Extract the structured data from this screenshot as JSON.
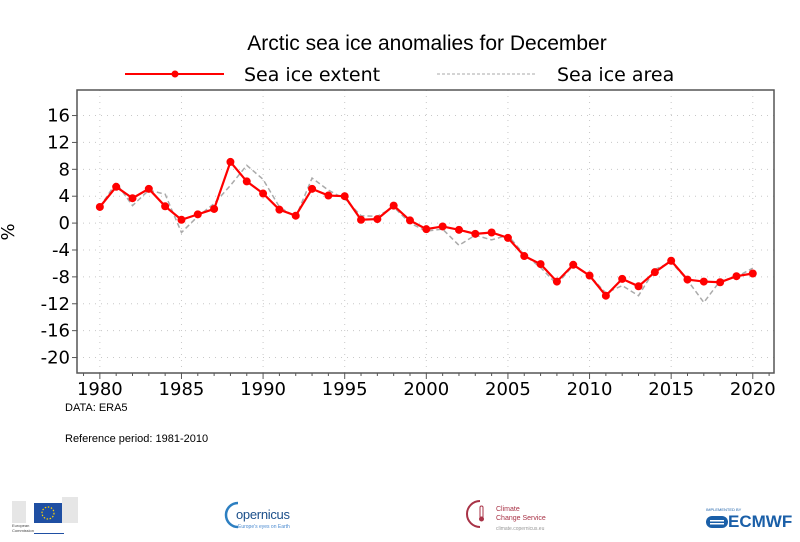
{
  "chart_data": {
    "type": "line",
    "title": "Arctic sea ice anomalies for December",
    "xlabel": "",
    "ylabel": "%",
    "xlim": [
      1978.6,
      2021.3
    ],
    "ylim": [
      -22.3,
      19.8
    ],
    "grid": true,
    "legend_position": "top",
    "x_ticks": [
      1980,
      1985,
      1990,
      1995,
      2000,
      2005,
      2010,
      2015,
      2020
    ],
    "x_tick_labels": [
      "1980",
      "1985",
      "1990",
      "1995",
      "2000",
      "2005",
      "2010",
      "2015",
      "2020"
    ],
    "y_ticks": [
      16,
      12,
      8,
      4,
      0,
      -4,
      -8,
      -12,
      -16,
      -20
    ],
    "y_tick_labels": [
      "16",
      "12",
      "8",
      "4",
      "0",
      "-4",
      "-8",
      "-12",
      "-16",
      "-20"
    ],
    "x": [
      1980,
      1981,
      1982,
      1983,
      1984,
      1985,
      1986,
      1987,
      1988,
      1989,
      1990,
      1991,
      1992,
      1993,
      1994,
      1995,
      1996,
      1997,
      1998,
      1999,
      2000,
      2001,
      2002,
      2003,
      2004,
      2005,
      2006,
      2007,
      2008,
      2009,
      2010,
      2011,
      2012,
      2013,
      2014,
      2015,
      2016,
      2017,
      2018,
      2019,
      2020
    ],
    "series": [
      {
        "name": "Sea ice extent",
        "color": "#ff0000",
        "style": "solid-with-markers",
        "values": [
          2.4,
          5.4,
          3.7,
          5.1,
          2.5,
          0.5,
          1.3,
          2.1,
          9.1,
          6.2,
          4.4,
          2.0,
          1.1,
          5.1,
          4.1,
          4.0,
          0.5,
          0.6,
          2.6,
          0.4,
          -0.9,
          -0.5,
          -1.0,
          -1.6,
          -1.4,
          -2.2,
          -4.9,
          -6.1,
          -8.7,
          -6.2,
          -7.8,
          -10.8,
          -8.3,
          -9.4,
          -7.3,
          -5.6,
          -8.4,
          -8.7,
          -8.8,
          -7.9,
          -7.5
        ]
      },
      {
        "name": "Sea ice area",
        "color": "#aaaaaa",
        "style": "dashed",
        "values": [
          2.4,
          6.0,
          2.6,
          4.9,
          4.3,
          -1.4,
          1.0,
          2.9,
          5.6,
          8.6,
          6.5,
          2.4,
          0.9,
          6.7,
          4.9,
          3.6,
          1.1,
          1.0,
          2.4,
          0.0,
          -1.2,
          -0.9,
          -3.3,
          -1.8,
          -2.5,
          -1.8,
          -4.7,
          -6.6,
          -9.1,
          -6.3,
          -7.8,
          -10.4,
          -9.3,
          -10.8,
          -6.9,
          -5.8,
          -8.5,
          -11.8,
          -8.6,
          -8.0,
          -6.7
        ]
      }
    ]
  },
  "notes": {
    "data_source": "DATA: ERA5",
    "reference_period": "Reference period: 1981-2010"
  },
  "logos": {
    "european_commission": {
      "line1": "European",
      "line2": "Commission"
    },
    "copernicus": {
      "name": "opernicus",
      "tagline": "Europe's eyes on Earth"
    },
    "c3s": {
      "line1": "Climate",
      "line2": "Change Service",
      "url": "climate.copernicus.eu"
    },
    "ecmwf": {
      "implemented": "IMPLEMENTED BY",
      "name": "ECMWF"
    }
  }
}
